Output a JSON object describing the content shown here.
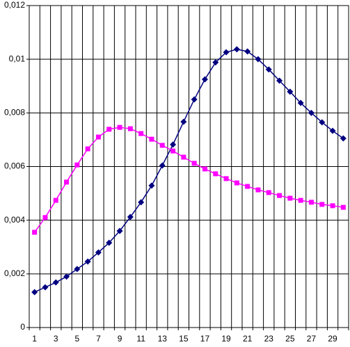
{
  "chart_data": {
    "type": "line",
    "categories": [
      1,
      null,
      3,
      null,
      5,
      null,
      7,
      null,
      9,
      null,
      11,
      null,
      13,
      null,
      15,
      null,
      17,
      null,
      19,
      null,
      21,
      null,
      23,
      null,
      25,
      null,
      27,
      null,
      29,
      null
    ],
    "series": [
      {
        "color": "#000080",
        "marker": "diamond",
        "values": [
          0.00132,
          0.0015,
          0.00168,
          0.0019,
          0.00218,
          0.00246,
          0.0028,
          0.00316,
          0.0036,
          0.00412,
          0.00467,
          0.00529,
          0.00604,
          0.00682,
          0.00767,
          0.0085,
          0.00925,
          0.00988,
          0.01026,
          0.01037,
          0.01029,
          0.01,
          0.00962,
          0.0092,
          0.00879,
          0.00837,
          0.008,
          0.00765,
          0.00733,
          0.00705
        ]
      },
      {
        "color": "#ff00ff",
        "marker": "square",
        "values": [
          0.00355,
          0.0041,
          0.00474,
          0.00542,
          0.00606,
          0.00666,
          0.0071,
          0.00739,
          0.00746,
          0.00741,
          0.00723,
          0.00702,
          0.00679,
          0.00658,
          0.00635,
          0.00612,
          0.00591,
          0.00573,
          0.00555,
          0.00539,
          0.00526,
          0.00513,
          0.00503,
          0.00492,
          0.00482,
          0.00474,
          0.00467,
          0.00459,
          0.00454,
          0.00448
        ]
      }
    ],
    "ylim": [
      0,
      0.012
    ],
    "yticks": [
      0,
      {
        "value": 0.002,
        "label": "0,002"
      },
      {
        "value": 0.004,
        "label": "0,004"
      },
      {
        "value": 0.006,
        "label": "0,006"
      },
      {
        "value": 0.008,
        "label": "0,008"
      },
      {
        "value": 0.01,
        "label": "0,01"
      },
      {
        "value": 0.012,
        "label": "0,012"
      }
    ],
    "grid": true
  }
}
